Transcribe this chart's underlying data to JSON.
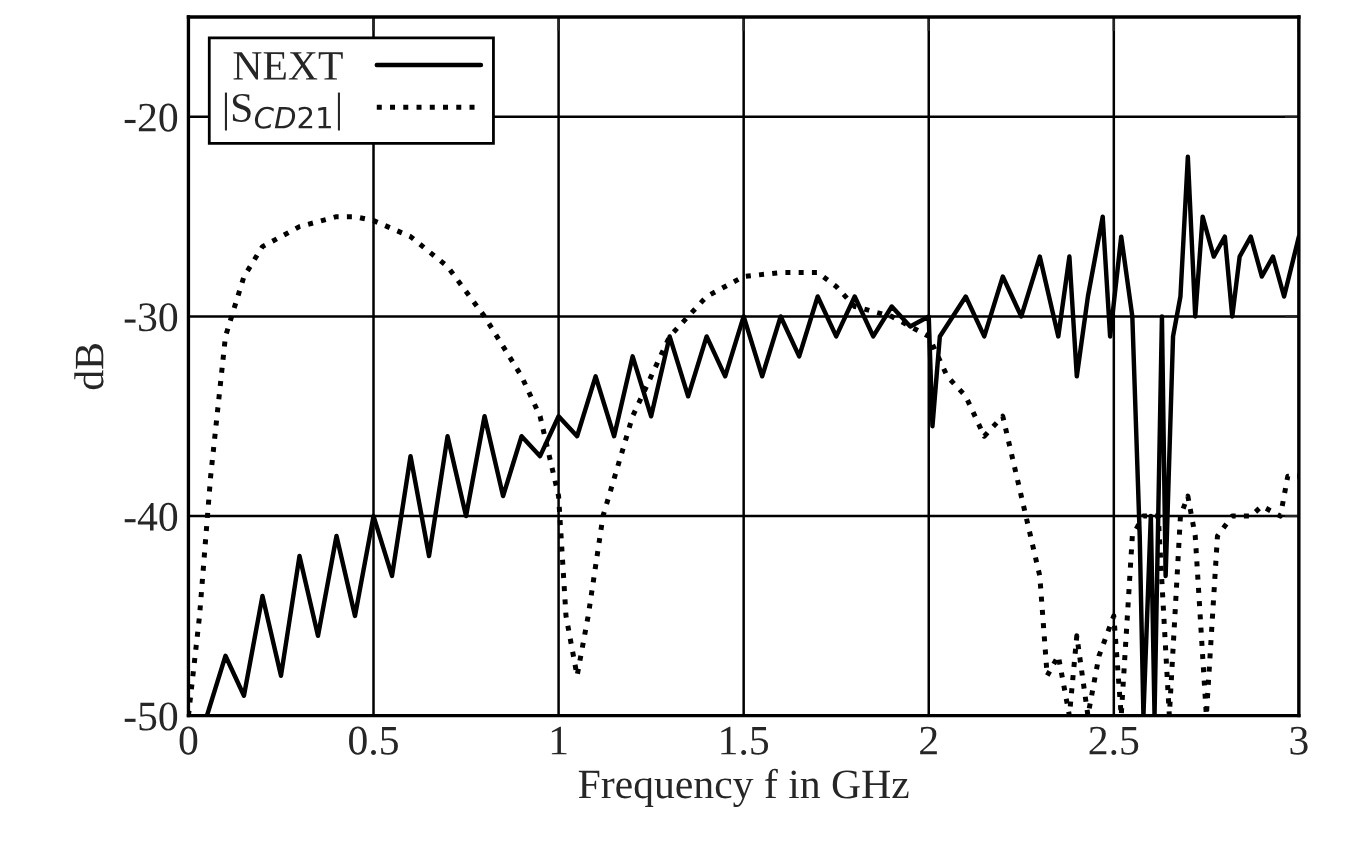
{
  "chart_data": {
    "type": "line",
    "xlabel": "Frequency f in GHz",
    "ylabel": "dB",
    "xlim": [
      0,
      3
    ],
    "ylim": [
      -50,
      -15
    ],
    "xticks": [
      0,
      0.5,
      1,
      1.5,
      2,
      2.5,
      3
    ],
    "yticks": [
      -50,
      -40,
      -30,
      -20
    ],
    "grid": true,
    "legend": "top left",
    "marker": "none",
    "series": [
      {
        "name": "NEXT",
        "color": "#000000",
        "line_style": "solid",
        "x": [
          0.05,
          0.1,
          0.15,
          0.2,
          0.25,
          0.3,
          0.35,
          0.4,
          0.45,
          0.5,
          0.55,
          0.6,
          0.65,
          0.7,
          0.75,
          0.8,
          0.85,
          0.9,
          0.95,
          1.0,
          1.05,
          1.1,
          1.15,
          1.2,
          1.25,
          1.3,
          1.35,
          1.4,
          1.45,
          1.5,
          1.55,
          1.6,
          1.65,
          1.7,
          1.75,
          1.8,
          1.85,
          1.9,
          1.95,
          2.0,
          2.01,
          2.03,
          2.1,
          2.15,
          2.2,
          2.25,
          2.3,
          2.35,
          2.38,
          2.4,
          2.43,
          2.47,
          2.49,
          2.52,
          2.55,
          2.57,
          2.58,
          2.6,
          2.61,
          2.63,
          2.64,
          2.66,
          2.68,
          2.7,
          2.72,
          2.74,
          2.77,
          2.8,
          2.82,
          2.84,
          2.87,
          2.9,
          2.93,
          2.96,
          3.0
        ],
        "values": [
          -50,
          -47,
          -49,
          -44,
          -48,
          -42,
          -46,
          -41,
          -45,
          -40,
          -43,
          -37,
          -42,
          -36,
          -40,
          -35,
          -39,
          -36,
          -37,
          -35,
          -36,
          -33,
          -36,
          -32,
          -35,
          -31,
          -34,
          -31,
          -33,
          -30,
          -33,
          -30,
          -32,
          -29,
          -31,
          -29,
          -31,
          -29.5,
          -30.5,
          -30,
          -35.5,
          -31,
          -29,
          -31,
          -28,
          -30,
          -27,
          -31,
          -27,
          -33,
          -29,
          -25,
          -31,
          -26,
          -30,
          -41,
          -50,
          -40,
          -50,
          -30,
          -43,
          -31,
          -29,
          -22,
          -30,
          -25,
          -27,
          -26,
          -30,
          -27,
          -26,
          -28,
          -27,
          -29,
          -26
        ]
      },
      {
        "name": "|S$_{CD21}$|",
        "color": "#000000",
        "line_style": "dotted",
        "x": [
          0.0,
          0.03,
          0.06,
          0.1,
          0.15,
          0.2,
          0.3,
          0.4,
          0.45,
          0.5,
          0.6,
          0.7,
          0.8,
          0.9,
          0.95,
          1.0,
          1.02,
          1.05,
          1.08,
          1.12,
          1.2,
          1.3,
          1.4,
          1.5,
          1.6,
          1.7,
          1.75,
          1.8,
          1.9,
          2.0,
          2.05,
          2.1,
          2.15,
          2.2,
          2.25,
          2.3,
          2.32,
          2.35,
          2.38,
          2.4,
          2.43,
          2.46,
          2.5,
          2.52,
          2.55,
          2.58,
          2.62,
          2.65,
          2.68,
          2.7,
          2.72,
          2.75,
          2.78,
          2.82,
          2.87,
          2.9,
          2.95,
          2.97,
          3.0
        ],
        "values": [
          -50,
          -45,
          -38,
          -31,
          -28,
          -26.5,
          -25.5,
          -25,
          -25,
          -25.2,
          -26,
          -27.5,
          -30,
          -33,
          -35,
          -39,
          -45,
          -48,
          -45,
          -40,
          -35,
          -31,
          -29,
          -28,
          -27.8,
          -27.8,
          -28.5,
          -29.5,
          -30,
          -31,
          -33,
          -34,
          -36,
          -35,
          -39,
          -43,
          -48,
          -47,
          -50,
          -46,
          -50,
          -47,
          -45,
          -50,
          -41,
          -40,
          -40,
          -50,
          -40,
          -39,
          -41,
          -50,
          -41,
          -40,
          -40,
          -39.5,
          -40,
          -38,
          -38
        ]
      }
    ]
  }
}
